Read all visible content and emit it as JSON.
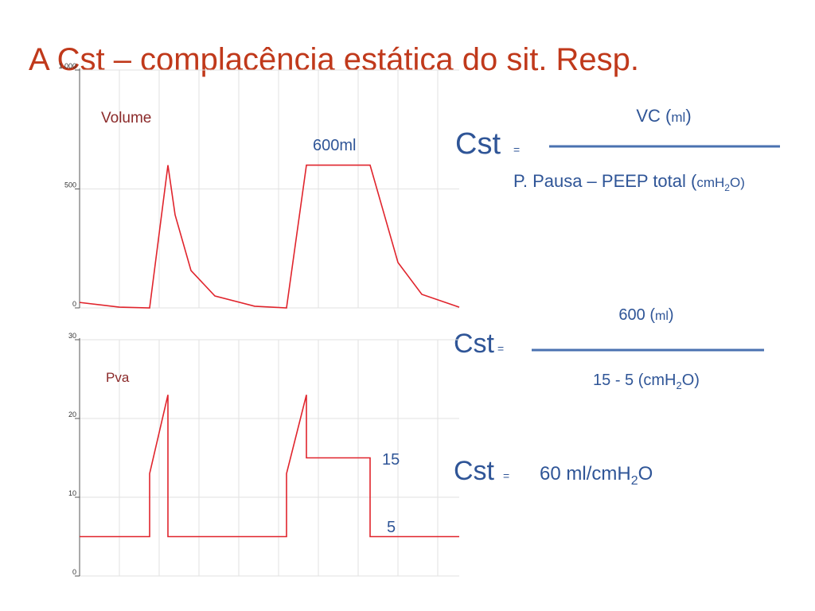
{
  "title": "A Cst – complacência estática do sit. Resp.",
  "chart_data": [
    {
      "type": "line",
      "color": "#e0242c",
      "x": [
        0,
        1,
        1.76,
        2.22,
        2.4,
        2.8,
        3.4,
        4.4,
        5.2,
        5.7,
        7.3,
        7.6,
        8.0,
        8.6,
        9.54
      ],
      "values": [
        23,
        3,
        0,
        600,
        391,
        157,
        50,
        7,
        0,
        600,
        600,
        425,
        191,
        57,
        3
      ],
      "xlim": [
        0,
        9.54
      ],
      "ylim": [
        0,
        1000
      ],
      "yticks": [
        0,
        500,
        {
          "value": 1000,
          "label": "1.000"
        }
      ],
      "grid": true,
      "annotations": [
        "Volume",
        "600ml"
      ]
    },
    {
      "type": "line",
      "color": "#e0242c",
      "x": [
        0,
        1.76,
        1.76,
        2.22,
        2.22,
        5.2,
        5.2,
        5.7,
        5.7,
        7.3,
        7.3,
        9.54
      ],
      "values": [
        5,
        5,
        13,
        23,
        5,
        5,
        13,
        23,
        15,
        15,
        5,
        5
      ],
      "xlim": [
        0,
        9.54
      ],
      "ylim": [
        0,
        30
      ],
      "yticks": [
        0,
        10,
        20,
        30
      ],
      "grid": true,
      "annotations": [
        "Pva",
        "15",
        "5"
      ]
    }
  ],
  "formula1": {
    "lhs": "Cst",
    "eq": "=",
    "numerator": [
      "VC (",
      "ml",
      ")"
    ],
    "denominator": [
      "P. Pausa – PEEP total (",
      "cmH",
      "2",
      "O)"
    ]
  },
  "formula2": {
    "lhs": "Cst",
    "eq": "=",
    "numerator": [
      "600 (",
      "ml",
      ")"
    ],
    "denominator": [
      "15 - 5 (cmH",
      "2",
      "O)"
    ]
  },
  "formula3": {
    "lhs": "Cst",
    "eq": "=",
    "result": [
      "60 ml/cmH",
      "2",
      "O"
    ]
  }
}
